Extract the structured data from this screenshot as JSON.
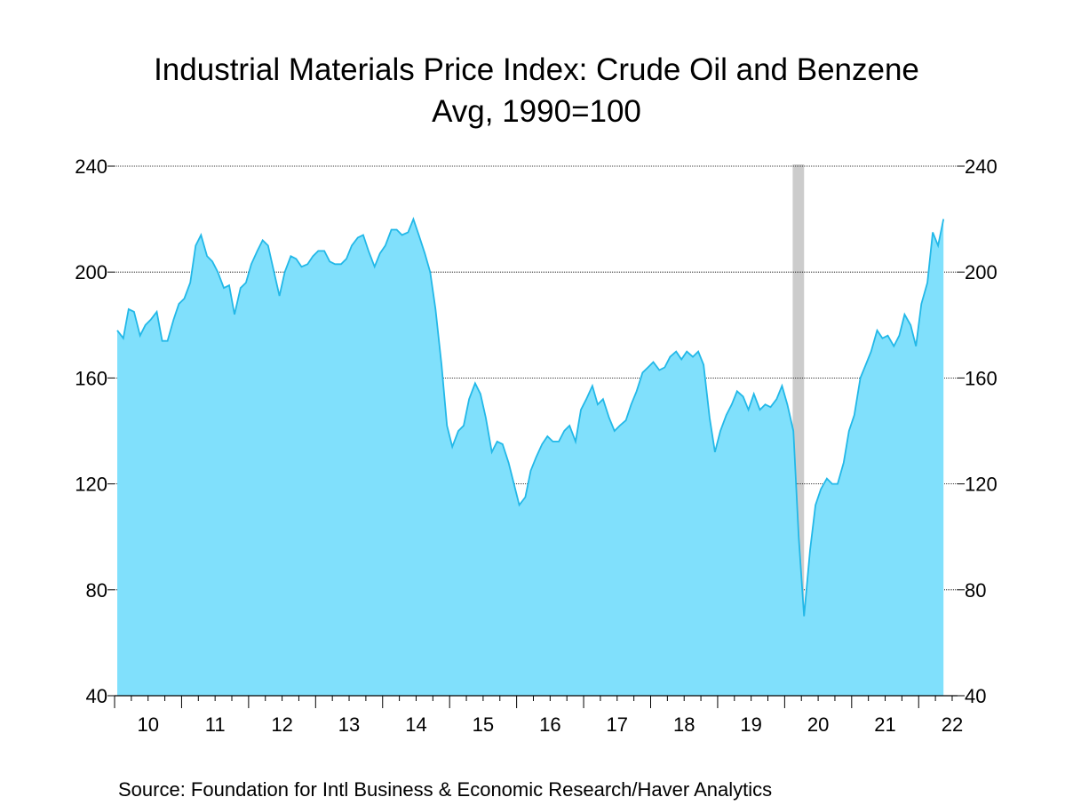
{
  "chart_data": {
    "type": "area",
    "title": "Industrial Materials Price Index: Crude Oil and Benzene",
    "subtitle": "Avg, 1990=100",
    "source": "Source:  Foundation for Intl Business & Economic Research/Haver Analytics",
    "x": [
      2010.04,
      2010.13,
      2010.21,
      2010.29,
      2010.38,
      2010.46,
      2010.54,
      2010.63,
      2010.71,
      2010.79,
      2010.88,
      2010.96,
      2011.04,
      2011.13,
      2011.21,
      2011.29,
      2011.38,
      2011.46,
      2011.54,
      2011.63,
      2011.71,
      2011.79,
      2011.88,
      2011.96,
      2012.04,
      2012.13,
      2012.21,
      2012.29,
      2012.38,
      2012.46,
      2012.54,
      2012.63,
      2012.71,
      2012.79,
      2012.88,
      2012.96,
      2013.04,
      2013.13,
      2013.21,
      2013.29,
      2013.38,
      2013.46,
      2013.54,
      2013.63,
      2013.71,
      2013.79,
      2013.88,
      2013.96,
      2014.04,
      2014.13,
      2014.21,
      2014.29,
      2014.38,
      2014.46,
      2014.54,
      2014.63,
      2014.71,
      2014.79,
      2014.88,
      2014.96,
      2015.04,
      2015.13,
      2015.21,
      2015.29,
      2015.38,
      2015.46,
      2015.54,
      2015.63,
      2015.71,
      2015.79,
      2015.88,
      2015.96,
      2016.04,
      2016.13,
      2016.21,
      2016.29,
      2016.38,
      2016.46,
      2016.54,
      2016.63,
      2016.71,
      2016.79,
      2016.88,
      2016.96,
      2017.04,
      2017.13,
      2017.21,
      2017.29,
      2017.38,
      2017.46,
      2017.54,
      2017.63,
      2017.71,
      2017.79,
      2017.88,
      2017.96,
      2018.04,
      2018.13,
      2018.21,
      2018.29,
      2018.38,
      2018.46,
      2018.54,
      2018.63,
      2018.71,
      2018.79,
      2018.88,
      2018.96,
      2019.04,
      2019.13,
      2019.21,
      2019.29,
      2019.38,
      2019.46,
      2019.54,
      2019.63,
      2019.71,
      2019.79,
      2019.88,
      2019.96,
      2020.04,
      2020.13,
      2020.21,
      2020.29,
      2020.38,
      2020.46,
      2020.54,
      2020.63,
      2020.71,
      2020.79,
      2020.88,
      2020.96,
      2021.04,
      2021.13,
      2021.21,
      2021.29,
      2021.38,
      2021.46,
      2021.54,
      2021.63,
      2021.71,
      2021.79,
      2021.88,
      2021.96,
      2022.04,
      2022.13,
      2022.21,
      2022.29,
      2022.37
    ],
    "series": [
      {
        "color": "#22b8e8",
        "fill": "#80e0fc",
        "values": [
          178,
          175,
          186,
          185,
          176,
          180,
          182,
          185,
          174,
          174,
          182,
          188,
          190,
          196,
          210,
          214,
          206,
          204,
          200,
          194,
          195,
          184,
          194,
          196,
          203,
          208,
          212,
          210,
          200,
          191,
          200,
          206,
          205,
          202,
          203,
          206,
          208,
          208,
          204,
          203,
          203,
          205,
          210,
          213,
          214,
          208,
          202,
          207,
          210,
          216,
          216,
          214,
          215,
          220,
          214,
          207,
          200,
          186,
          165,
          142,
          134,
          140,
          142,
          152,
          158,
          154,
          145,
          132,
          136,
          135,
          128,
          120,
          112,
          115,
          125,
          130,
          135,
          138,
          136,
          136,
          140,
          142,
          136,
          148,
          152,
          157,
          150,
          152,
          145,
          140,
          142,
          144,
          150,
          155,
          162,
          164,
          166,
          163,
          164,
          168,
          170,
          167,
          170,
          168,
          170,
          165,
          145,
          132,
          140,
          146,
          150,
          155,
          153,
          148,
          154,
          148,
          150,
          149,
          152,
          157,
          150,
          140,
          100,
          70,
          95,
          112,
          118,
          122,
          120,
          120,
          128,
          140,
          146,
          160,
          165,
          170,
          178,
          175,
          176,
          172,
          176,
          184,
          180,
          172,
          188,
          196,
          215,
          210,
          220
        ]
      }
    ],
    "shaded_periods": [
      [
        2020.12,
        2020.29
      ]
    ],
    "xlim": [
      2010,
      2022.58
    ],
    "xticks": [
      {
        "value": 2010,
        "label": "10"
      },
      {
        "value": 2011,
        "label": "11"
      },
      {
        "value": 2012,
        "label": "12"
      },
      {
        "value": 2013,
        "label": "13"
      },
      {
        "value": 2014,
        "label": "14"
      },
      {
        "value": 2015,
        "label": "15"
      },
      {
        "value": 2016,
        "label": "16"
      },
      {
        "value": 2017,
        "label": "17"
      },
      {
        "value": 2018,
        "label": "18"
      },
      {
        "value": 2019,
        "label": "19"
      },
      {
        "value": 2020,
        "label": "20"
      },
      {
        "value": 2021,
        "label": "21"
      },
      {
        "value": 2022,
        "label": "22"
      }
    ],
    "ylim": [
      40,
      240
    ],
    "yticks": [
      40,
      80,
      120,
      160,
      200,
      240
    ],
    "y2lim": [
      40,
      240
    ],
    "y2ticks": [
      40,
      80,
      120,
      160,
      200,
      240
    ],
    "grid": true
  }
}
